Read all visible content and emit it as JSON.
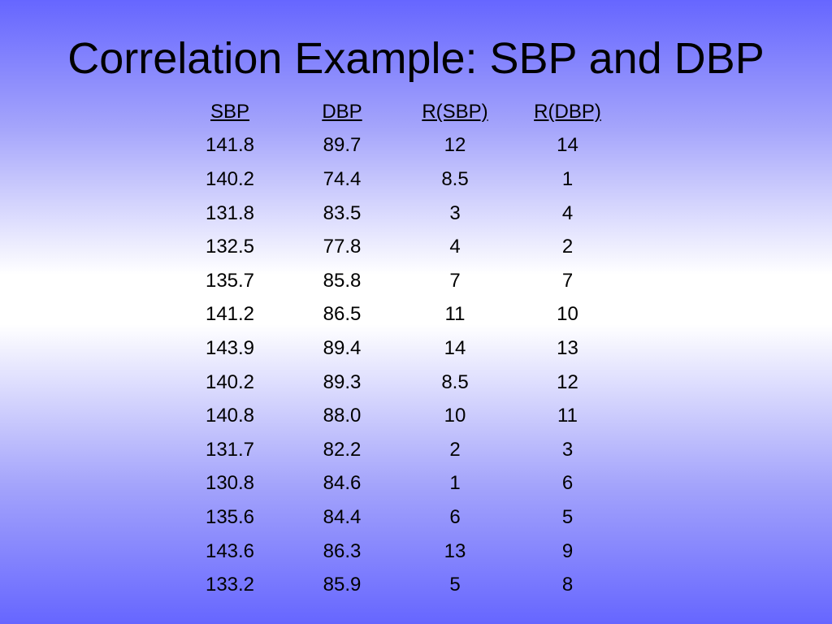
{
  "slide": {
    "title": "Correlation Example: SBP and DBP"
  },
  "table": {
    "headers": [
      "SBP",
      "DBP",
      "R(SBP)",
      "R(DBP)"
    ],
    "rows": [
      [
        "141.8",
        "89.7",
        "12",
        "14"
      ],
      [
        "140.2",
        "74.4",
        "8.5",
        "1"
      ],
      [
        "131.8",
        "83.5",
        "3",
        "4"
      ],
      [
        "132.5",
        "77.8",
        "4",
        "2"
      ],
      [
        "135.7",
        "85.8",
        "7",
        "7"
      ],
      [
        "141.2",
        "86.5",
        "11",
        "10"
      ],
      [
        "143.9",
        "89.4",
        "14",
        "13"
      ],
      [
        "140.2",
        "89.3",
        "8.5",
        "12"
      ],
      [
        "140.8",
        "88.0",
        "10",
        "11"
      ],
      [
        "131.7",
        "82.2",
        "2",
        "3"
      ],
      [
        "130.8",
        "84.6",
        "1",
        "6"
      ],
      [
        "135.6",
        "84.4",
        "6",
        "5"
      ],
      [
        "143.6",
        "86.3",
        "13",
        "9"
      ],
      [
        "133.2",
        "85.9",
        "5",
        "8"
      ]
    ]
  },
  "colors": {
    "gradient_edge": "#6666ff",
    "gradient_center": "#ffffff",
    "text": "#000000"
  }
}
